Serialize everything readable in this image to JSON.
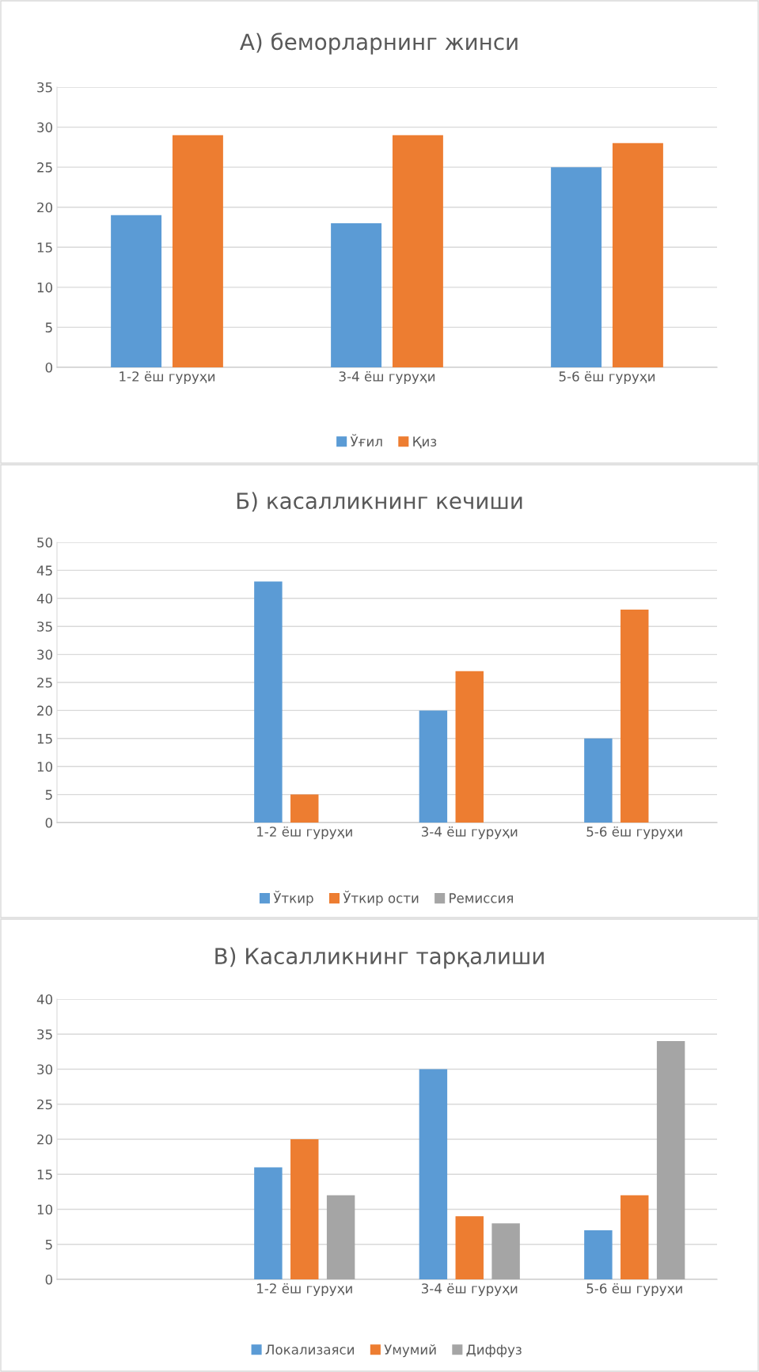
{
  "chart_data": [
    {
      "type": "bar",
      "title": "А) беморларнинг жинси",
      "categories": [
        "1-2 ёш гуруҳи",
        "3-4 ёш гуруҳи",
        "5-6 ёш гуруҳи"
      ],
      "series": [
        {
          "name": "Ўғил",
          "color": "#5b9bd5",
          "values": [
            19,
            18,
            25
          ]
        },
        {
          "name": "Қиз",
          "color": "#ed7d31",
          "values": [
            29,
            29,
            28
          ]
        }
      ],
      "ylim": [
        0,
        35
      ],
      "yticks": [
        0,
        5,
        10,
        15,
        20,
        25,
        30,
        35
      ],
      "grid": "y",
      "legend": "bottom"
    },
    {
      "type": "bar",
      "title": "Б) касалликнинг кечиши",
      "categories": [
        null,
        "1-2 ёш гуруҳи",
        "3-4 ёш гуруҳи",
        "5-6 ёш гуруҳи"
      ],
      "series": [
        {
          "name": "Ўткир",
          "color": "#5b9bd5",
          "values": [
            null,
            43,
            20,
            15
          ]
        },
        {
          "name": "Ўткир ости",
          "color": "#ed7d31",
          "values": [
            null,
            5,
            27,
            38
          ]
        },
        {
          "name": "Ремиссия",
          "color": "#a5a5a5",
          "values": [
            null,
            null,
            null,
            null
          ]
        }
      ],
      "ylim": [
        0,
        50
      ],
      "yticks": [
        0,
        5,
        10,
        15,
        20,
        25,
        30,
        35,
        40,
        45,
        50
      ],
      "grid": "y",
      "legend": "bottom"
    },
    {
      "type": "bar",
      "title": "В) Касалликнинг тарқалиши",
      "categories": [
        null,
        "1-2 ёш гуруҳи",
        "3-4 ёш гуруҳи",
        "5-6 ёш гуруҳи"
      ],
      "series": [
        {
          "name": "Локализаяси",
          "color": "#5b9bd5",
          "values": [
            null,
            16,
            30,
            7
          ]
        },
        {
          "name": "Умумий",
          "color": "#ed7d31",
          "values": [
            null,
            20,
            9,
            12
          ]
        },
        {
          "name": "Диффуз",
          "color": "#a5a5a5",
          "values": [
            null,
            12,
            8,
            34
          ]
        }
      ],
      "ylim": [
        0,
        40
      ],
      "yticks": [
        0,
        5,
        10,
        15,
        20,
        25,
        30,
        35,
        40
      ],
      "grid": "y",
      "legend": "bottom"
    }
  ]
}
